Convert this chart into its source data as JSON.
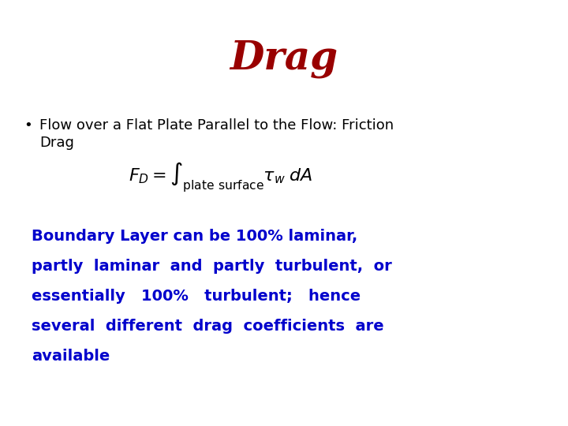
{
  "title": "Drag",
  "title_color": "#990000",
  "title_fontsize": 36,
  "title_weight": "bold",
  "bg_color": "#ffffff",
  "bullet_text_line1": "Flow over a Flat Plate Parallel to the Flow: Friction",
  "bullet_text_line2": "Drag",
  "bullet_fontsize": 13,
  "bullet_color": "#000000",
  "equation": "$F_D = \\int_{\\mathrm{plate\\ surface}} \\tau_w \\; dA$",
  "equation_fontsize": 16,
  "equation_color": "#000000",
  "paragraph_lines": [
    "Boundary Layer can be 100% laminar,",
    "partly  laminar  and  partly  turbulent,  or",
    "essentially   100%   turbulent;   hence",
    "several  different  drag  coefficients  are",
    "available"
  ],
  "paragraph_color": "#0000cc",
  "paragraph_fontsize": 14,
  "paragraph_weight": "bold"
}
